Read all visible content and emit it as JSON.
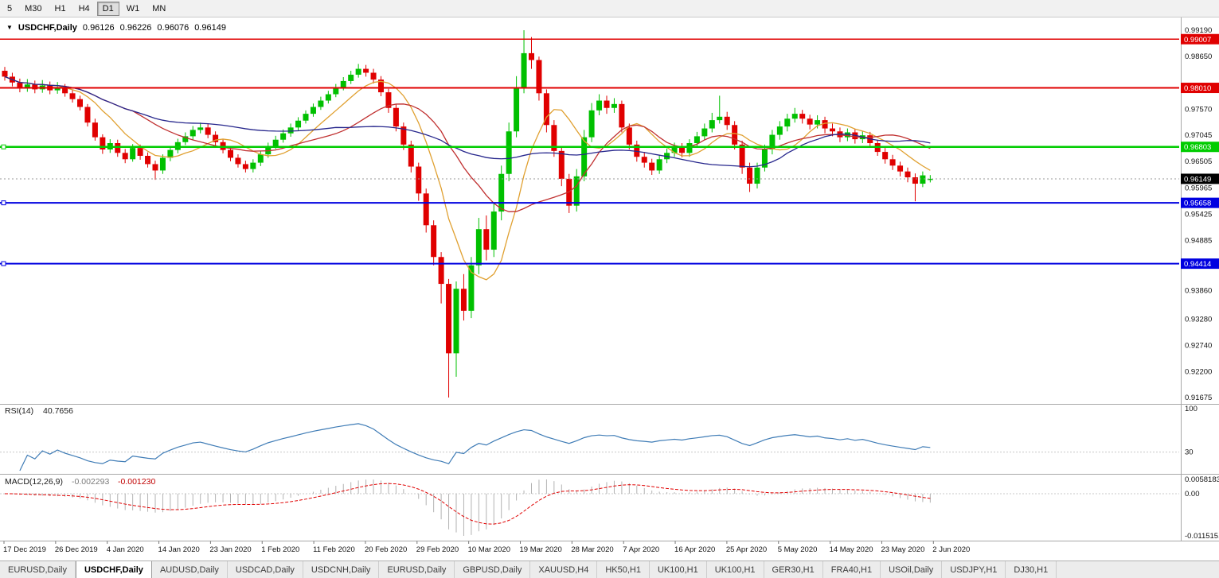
{
  "toolbar": {
    "buttons": [
      {
        "label": "5",
        "active": false
      },
      {
        "label": "M30",
        "active": false
      },
      {
        "label": "H1",
        "active": false
      },
      {
        "label": "H4",
        "active": false
      },
      {
        "label": "D1",
        "active": true
      },
      {
        "label": "W1",
        "active": false
      },
      {
        "label": "MN",
        "active": false
      }
    ]
  },
  "chart": {
    "symbol": "USDCHF,Daily",
    "open": "0.96126",
    "high": "0.96226",
    "low": "0.96076",
    "close": "0.96149"
  },
  "price_axis": {
    "ticks": [
      "0.99190",
      "0.98650",
      "0.97570",
      "0.97045",
      "0.96505",
      "0.95965",
      "0.95425",
      "0.94885",
      "0.93860",
      "0.93280",
      "0.92740",
      "0.92200",
      "0.91675"
    ]
  },
  "current_price": {
    "label": "0.96149",
    "price": 0.96149,
    "color": "#000000"
  },
  "hlines": [
    {
      "price": 0.99007,
      "color": "#e00000",
      "width": 1.6,
      "tag": "0.99007",
      "handle": false
    },
    {
      "price": 0.9801,
      "color": "#e00000",
      "width": 2.0,
      "tag": "0.98010",
      "handle": false
    },
    {
      "price": 0.96803,
      "color": "#00cc00",
      "width": 2.4,
      "tag": "0.96803",
      "handle": true
    },
    {
      "price": 0.95658,
      "color": "#0000e0",
      "width": 2.0,
      "tag": "0.95658",
      "handle": true
    },
    {
      "price": 0.94414,
      "color": "#0000e0",
      "width": 2.0,
      "tag": "0.94414",
      "handle": true
    }
  ],
  "x_axis": {
    "labels": [
      "17 Dec 2019",
      "26 Dec 2019",
      "4 Jan 2020",
      "14 Jan 2020",
      "23 Jan 2020",
      "1 Feb 2020",
      "11 Feb 2020",
      "20 Feb 2020",
      "29 Feb 2020",
      "10 Mar 2020",
      "19 Mar 2020",
      "28 Mar 2020",
      "7 Apr 2020",
      "16 Apr 2020",
      "25 Apr 2020",
      "5 May 2020",
      "14 May 2020",
      "23 May 2020",
      "2 Jun 2020"
    ]
  },
  "indicators": {
    "rsi": {
      "name": "RSI(14)",
      "value": "40.7656",
      "line_color": "#3f7cb6",
      "levels": [
        {
          "label": "100",
          "value": 100
        },
        {
          "label": "30",
          "value": 30
        }
      ]
    },
    "macd": {
      "name": "MACD(12,26,9)",
      "main_value": "-0.002293",
      "signal_value": "-0.001230",
      "histogram_color": "#b2b2b2",
      "signal_color": "#e00000",
      "axis_labels": {
        "top": "0.0058183",
        "zero": "0.00",
        "bottom": "-0.0115151"
      }
    }
  },
  "chart_data": {
    "type": "candlestick",
    "symbol": "USDCHF",
    "timeframe": "Daily",
    "price_scale": {
      "top": 0.9919,
      "bottom": 0.91675
    },
    "bull_color": "#00c000",
    "bear_color": "#e00000",
    "moving_averages": [
      {
        "period": 8,
        "color": "#e0a030"
      },
      {
        "period": 18,
        "color": "#c03030"
      },
      {
        "period": 45,
        "color": "#26268c"
      }
    ],
    "candles": [
      [
        0.9836,
        0.9844,
        0.9816,
        0.9824
      ],
      [
        0.9824,
        0.9832,
        0.9804,
        0.9812
      ],
      [
        0.9812,
        0.982,
        0.9792,
        0.98
      ],
      [
        0.98,
        0.9819,
        0.9793,
        0.9808
      ],
      [
        0.9808,
        0.9816,
        0.979,
        0.9798
      ],
      [
        0.9798,
        0.9817,
        0.9791,
        0.9806
      ],
      [
        0.9806,
        0.9814,
        0.9788,
        0.9796
      ],
      [
        0.9796,
        0.9813,
        0.9789,
        0.9802
      ],
      [
        0.9802,
        0.9809,
        0.9783,
        0.979
      ],
      [
        0.979,
        0.9797,
        0.9771,
        0.9778
      ],
      [
        0.9778,
        0.9785,
        0.9755,
        0.9762
      ],
      [
        0.9762,
        0.9768,
        0.9722,
        0.973
      ],
      [
        0.973,
        0.9738,
        0.9693,
        0.97
      ],
      [
        0.97,
        0.9706,
        0.9666,
        0.9675
      ],
      [
        0.9675,
        0.9696,
        0.9668,
        0.9688
      ],
      [
        0.9688,
        0.9695,
        0.966,
        0.9668
      ],
      [
        0.9668,
        0.9676,
        0.9647,
        0.9655
      ],
      [
        0.9655,
        0.9686,
        0.965,
        0.9678
      ],
      [
        0.9678,
        0.9685,
        0.9654,
        0.9662
      ],
      [
        0.9662,
        0.9669,
        0.9638,
        0.9645
      ],
      [
        0.9645,
        0.9652,
        0.9613,
        0.9632
      ],
      [
        0.9632,
        0.9665,
        0.9625,
        0.9658
      ],
      [
        0.9658,
        0.9682,
        0.9651,
        0.9674
      ],
      [
        0.9674,
        0.9697,
        0.9667,
        0.969
      ],
      [
        0.969,
        0.971,
        0.9684,
        0.9702
      ],
      [
        0.9702,
        0.9723,
        0.9695,
        0.9715
      ],
      [
        0.9715,
        0.973,
        0.9708,
        0.972
      ],
      [
        0.972,
        0.9727,
        0.9698,
        0.9705
      ],
      [
        0.9705,
        0.9712,
        0.9683,
        0.969
      ],
      [
        0.969,
        0.9697,
        0.9667,
        0.9674
      ],
      [
        0.9674,
        0.9681,
        0.9651,
        0.9658
      ],
      [
        0.9658,
        0.9665,
        0.9638,
        0.9645
      ],
      [
        0.9645,
        0.9652,
        0.9628,
        0.9635
      ],
      [
        0.9635,
        0.9655,
        0.9628,
        0.9648
      ],
      [
        0.9648,
        0.9672,
        0.9641,
        0.9665
      ],
      [
        0.9665,
        0.9689,
        0.9658,
        0.9682
      ],
      [
        0.9682,
        0.9703,
        0.9676,
        0.9695
      ],
      [
        0.9695,
        0.9716,
        0.9689,
        0.9708
      ],
      [
        0.9708,
        0.9728,
        0.9701,
        0.972
      ],
      [
        0.972,
        0.9741,
        0.9714,
        0.9734
      ],
      [
        0.9734,
        0.9755,
        0.9728,
        0.9748
      ],
      [
        0.9748,
        0.9769,
        0.9742,
        0.9762
      ],
      [
        0.9762,
        0.9783,
        0.9756,
        0.9775
      ],
      [
        0.9775,
        0.9795,
        0.9769,
        0.9788
      ],
      [
        0.9788,
        0.9809,
        0.9782,
        0.9802
      ],
      [
        0.9802,
        0.9823,
        0.9796,
        0.9815
      ],
      [
        0.9815,
        0.9836,
        0.9809,
        0.9828
      ],
      [
        0.9828,
        0.985,
        0.9822,
        0.984
      ],
      [
        0.984,
        0.9848,
        0.9824,
        0.9832
      ],
      [
        0.9832,
        0.984,
        0.981,
        0.9818
      ],
      [
        0.9818,
        0.9825,
        0.9784,
        0.9792
      ],
      [
        0.9792,
        0.9799,
        0.975,
        0.976
      ],
      [
        0.976,
        0.9768,
        0.9712,
        0.9722
      ],
      [
        0.9722,
        0.973,
        0.9674,
        0.9685
      ],
      [
        0.9685,
        0.9693,
        0.9628,
        0.964
      ],
      [
        0.964,
        0.9648,
        0.957,
        0.9585
      ],
      [
        0.9585,
        0.9595,
        0.9505,
        0.952
      ],
      [
        0.952,
        0.953,
        0.9438,
        0.9455
      ],
      [
        0.9455,
        0.9465,
        0.936,
        0.94
      ],
      [
        0.94,
        0.941,
        0.91675,
        0.9258
      ],
      [
        0.9258,
        0.9405,
        0.921,
        0.939
      ],
      [
        0.939,
        0.942,
        0.9325,
        0.9345
      ],
      [
        0.9345,
        0.9455,
        0.933,
        0.9438
      ],
      [
        0.9438,
        0.9535,
        0.942,
        0.9512
      ],
      [
        0.9512,
        0.954,
        0.9448,
        0.947
      ],
      [
        0.947,
        0.9565,
        0.9455,
        0.9548
      ],
      [
        0.9548,
        0.9642,
        0.953,
        0.9625
      ],
      [
        0.9625,
        0.973,
        0.961,
        0.9712
      ],
      [
        0.9712,
        0.9825,
        0.97,
        0.98
      ],
      [
        0.98,
        0.9919,
        0.979,
        0.9872
      ],
      [
        0.9872,
        0.9905,
        0.984,
        0.9858
      ],
      [
        0.9858,
        0.9865,
        0.9775,
        0.979
      ],
      [
        0.979,
        0.9798,
        0.971,
        0.9725
      ],
      [
        0.9725,
        0.9735,
        0.966,
        0.9672
      ],
      [
        0.9672,
        0.9682,
        0.96,
        0.9615
      ],
      [
        0.9615,
        0.9625,
        0.9545,
        0.956
      ],
      [
        0.956,
        0.9635,
        0.9548,
        0.962
      ],
      [
        0.962,
        0.9715,
        0.961,
        0.97
      ],
      [
        0.97,
        0.977,
        0.969,
        0.9755
      ],
      [
        0.9755,
        0.9788,
        0.9745,
        0.9775
      ],
      [
        0.9775,
        0.9785,
        0.9748,
        0.976
      ],
      [
        0.976,
        0.978,
        0.975,
        0.9768
      ],
      [
        0.9768,
        0.9775,
        0.971,
        0.972
      ],
      [
        0.972,
        0.9728,
        0.9675,
        0.9685
      ],
      [
        0.9685,
        0.9693,
        0.965,
        0.966
      ],
      [
        0.966,
        0.967,
        0.9638,
        0.9648
      ],
      [
        0.9648,
        0.9656,
        0.9623,
        0.9632
      ],
      [
        0.9632,
        0.9664,
        0.9625,
        0.9655
      ],
      [
        0.9655,
        0.9677,
        0.9647,
        0.9668
      ],
      [
        0.9668,
        0.9689,
        0.966,
        0.968
      ],
      [
        0.968,
        0.9688,
        0.9659,
        0.9668
      ],
      [
        0.9668,
        0.9696,
        0.966,
        0.9688
      ],
      [
        0.9688,
        0.9711,
        0.968,
        0.9702
      ],
      [
        0.9702,
        0.9728,
        0.9694,
        0.9718
      ],
      [
        0.9718,
        0.975,
        0.971,
        0.9735
      ],
      [
        0.9735,
        0.9785,
        0.9728,
        0.9742
      ],
      [
        0.9742,
        0.9752,
        0.9715,
        0.9725
      ],
      [
        0.9725,
        0.9733,
        0.9675,
        0.9685
      ],
      [
        0.9685,
        0.9693,
        0.9625,
        0.9638
      ],
      [
        0.9638,
        0.9648,
        0.9588,
        0.9605
      ],
      [
        0.9605,
        0.9648,
        0.9595,
        0.9638
      ],
      [
        0.9638,
        0.9685,
        0.963,
        0.9675
      ],
      [
        0.9675,
        0.9715,
        0.9665,
        0.9705
      ],
      [
        0.9705,
        0.9733,
        0.9695,
        0.9722
      ],
      [
        0.9722,
        0.9748,
        0.9712,
        0.9738
      ],
      [
        0.9738,
        0.976,
        0.973,
        0.9748
      ],
      [
        0.9748,
        0.9756,
        0.9728,
        0.9738
      ],
      [
        0.9738,
        0.9746,
        0.9716,
        0.9726
      ],
      [
        0.9726,
        0.9745,
        0.9718,
        0.9735
      ],
      [
        0.9735,
        0.9742,
        0.9708,
        0.9718
      ],
      [
        0.9718,
        0.9728,
        0.9702,
        0.9712
      ],
      [
        0.9712,
        0.972,
        0.969,
        0.97
      ],
      [
        0.97,
        0.9718,
        0.9692,
        0.971
      ],
      [
        0.971,
        0.9717,
        0.9687,
        0.9696
      ],
      [
        0.9696,
        0.9713,
        0.9688,
        0.9704
      ],
      [
        0.9704,
        0.9711,
        0.968,
        0.9688
      ],
      [
        0.9688,
        0.9695,
        0.9662,
        0.967
      ],
      [
        0.967,
        0.9678,
        0.9646,
        0.9655
      ],
      [
        0.9655,
        0.9664,
        0.9633,
        0.9642
      ],
      [
        0.9642,
        0.965,
        0.962,
        0.963
      ],
      [
        0.963,
        0.9638,
        0.9608,
        0.9618
      ],
      [
        0.9618,
        0.9626,
        0.9569,
        0.9605
      ],
      [
        0.9605,
        0.963,
        0.9598,
        0.9622
      ],
      [
        0.96126,
        0.96226,
        0.96076,
        0.96149
      ]
    ]
  },
  "tabs": [
    {
      "label": "EURUSD,Daily",
      "active": false
    },
    {
      "label": "USDCHF,Daily",
      "active": true
    },
    {
      "label": "AUDUSD,Daily",
      "active": false
    },
    {
      "label": "USDCAD,Daily",
      "active": false
    },
    {
      "label": "USDCNH,Daily",
      "active": false
    },
    {
      "label": "EURUSD,Daily",
      "active": false
    },
    {
      "label": "GBPUSD,Daily",
      "active": false
    },
    {
      "label": "XAUUSD,H4",
      "active": false
    },
    {
      "label": "HK50,H1",
      "active": false
    },
    {
      "label": "UK100,H1",
      "active": false
    },
    {
      "label": "UK100,H1",
      "active": false
    },
    {
      "label": "GER30,H1",
      "active": false
    },
    {
      "label": "FRA40,H1",
      "active": false
    },
    {
      "label": "USOil,Daily",
      "active": false
    },
    {
      "label": "USDJPY,H1",
      "active": false
    },
    {
      "label": "DJ30,H1",
      "active": false
    }
  ]
}
